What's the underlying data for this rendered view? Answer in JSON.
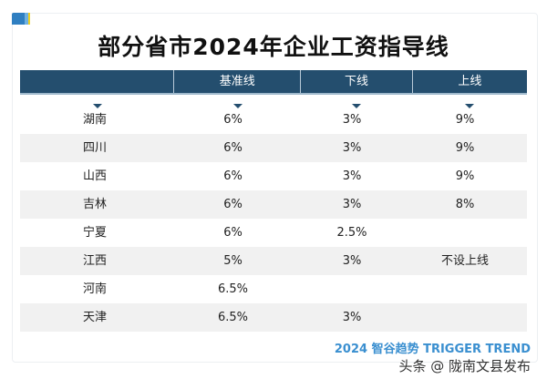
{
  "title": "部分省市2024年企业工资指导线",
  "columns": [
    "",
    "基准线",
    "下线",
    "上线"
  ],
  "rows": [
    {
      "region": "湖南",
      "base": "6%",
      "low": "3%",
      "high": "9%"
    },
    {
      "region": "四川",
      "base": "6%",
      "low": "3%",
      "high": "9%"
    },
    {
      "region": "山西",
      "base": "6%",
      "low": "3%",
      "high": "9%"
    },
    {
      "region": "吉林",
      "base": "6%",
      "low": "3%",
      "high": "8%"
    },
    {
      "region": "宁夏",
      "base": "6%",
      "low": "2.5%",
      "high": ""
    },
    {
      "region": "江西",
      "base": "5%",
      "low": "3%",
      "high": "不设上线"
    },
    {
      "region": "河南",
      "base": "6.5%",
      "low": "",
      "high": ""
    },
    {
      "region": "天津",
      "base": "6.5%",
      "low": "3%",
      "high": ""
    }
  ],
  "watermark": {
    "brand": "2024 智谷趋势 TRIGGER TREND",
    "source": "头条 @ 陇南文县发布"
  }
}
